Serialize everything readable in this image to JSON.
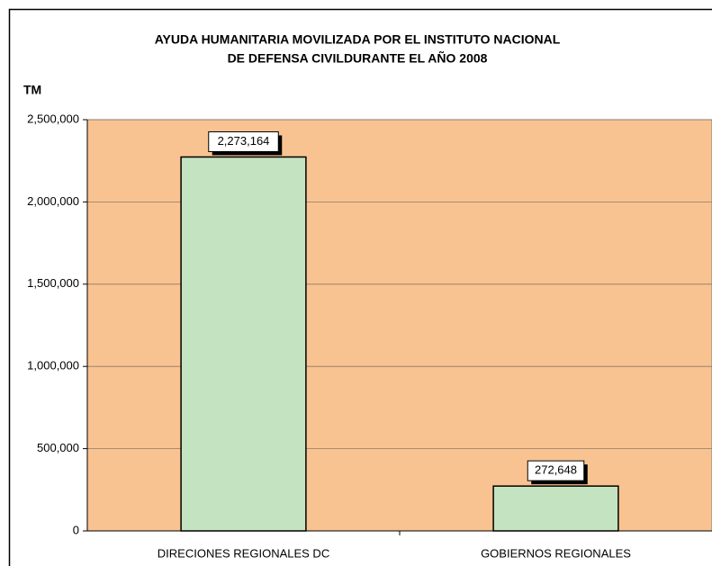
{
  "chart_data": {
    "type": "bar",
    "title": [
      "AYUDA HUMANITARIA MOVILIZADA POR EL INSTITUTO NACIONAL",
      "DE DEFENSA CIVILDURANTE EL AÑO 2008"
    ],
    "y_label": "TM",
    "categories": [
      "DIRECIONES REGIONALES DC",
      "GOBIERNOS REGIONALES"
    ],
    "values": [
      2273164,
      272648
    ],
    "value_labels": [
      "2,273,164",
      "272,648"
    ],
    "color": "#c4e3c0",
    "plot_background": "#f9c391",
    "ylim": [
      0,
      2500000
    ],
    "yticks": [
      0,
      {
        "value": 500000,
        "label": "500,000"
      },
      {
        "value": 1000000,
        "label": "1,000,000"
      },
      {
        "value": 1500000,
        "label": "1,500,000"
      },
      {
        "value": 2000000,
        "label": "2,000,000"
      },
      {
        "value": 2500000,
        "label": "2,500,000"
      }
    ],
    "grid": true
  }
}
